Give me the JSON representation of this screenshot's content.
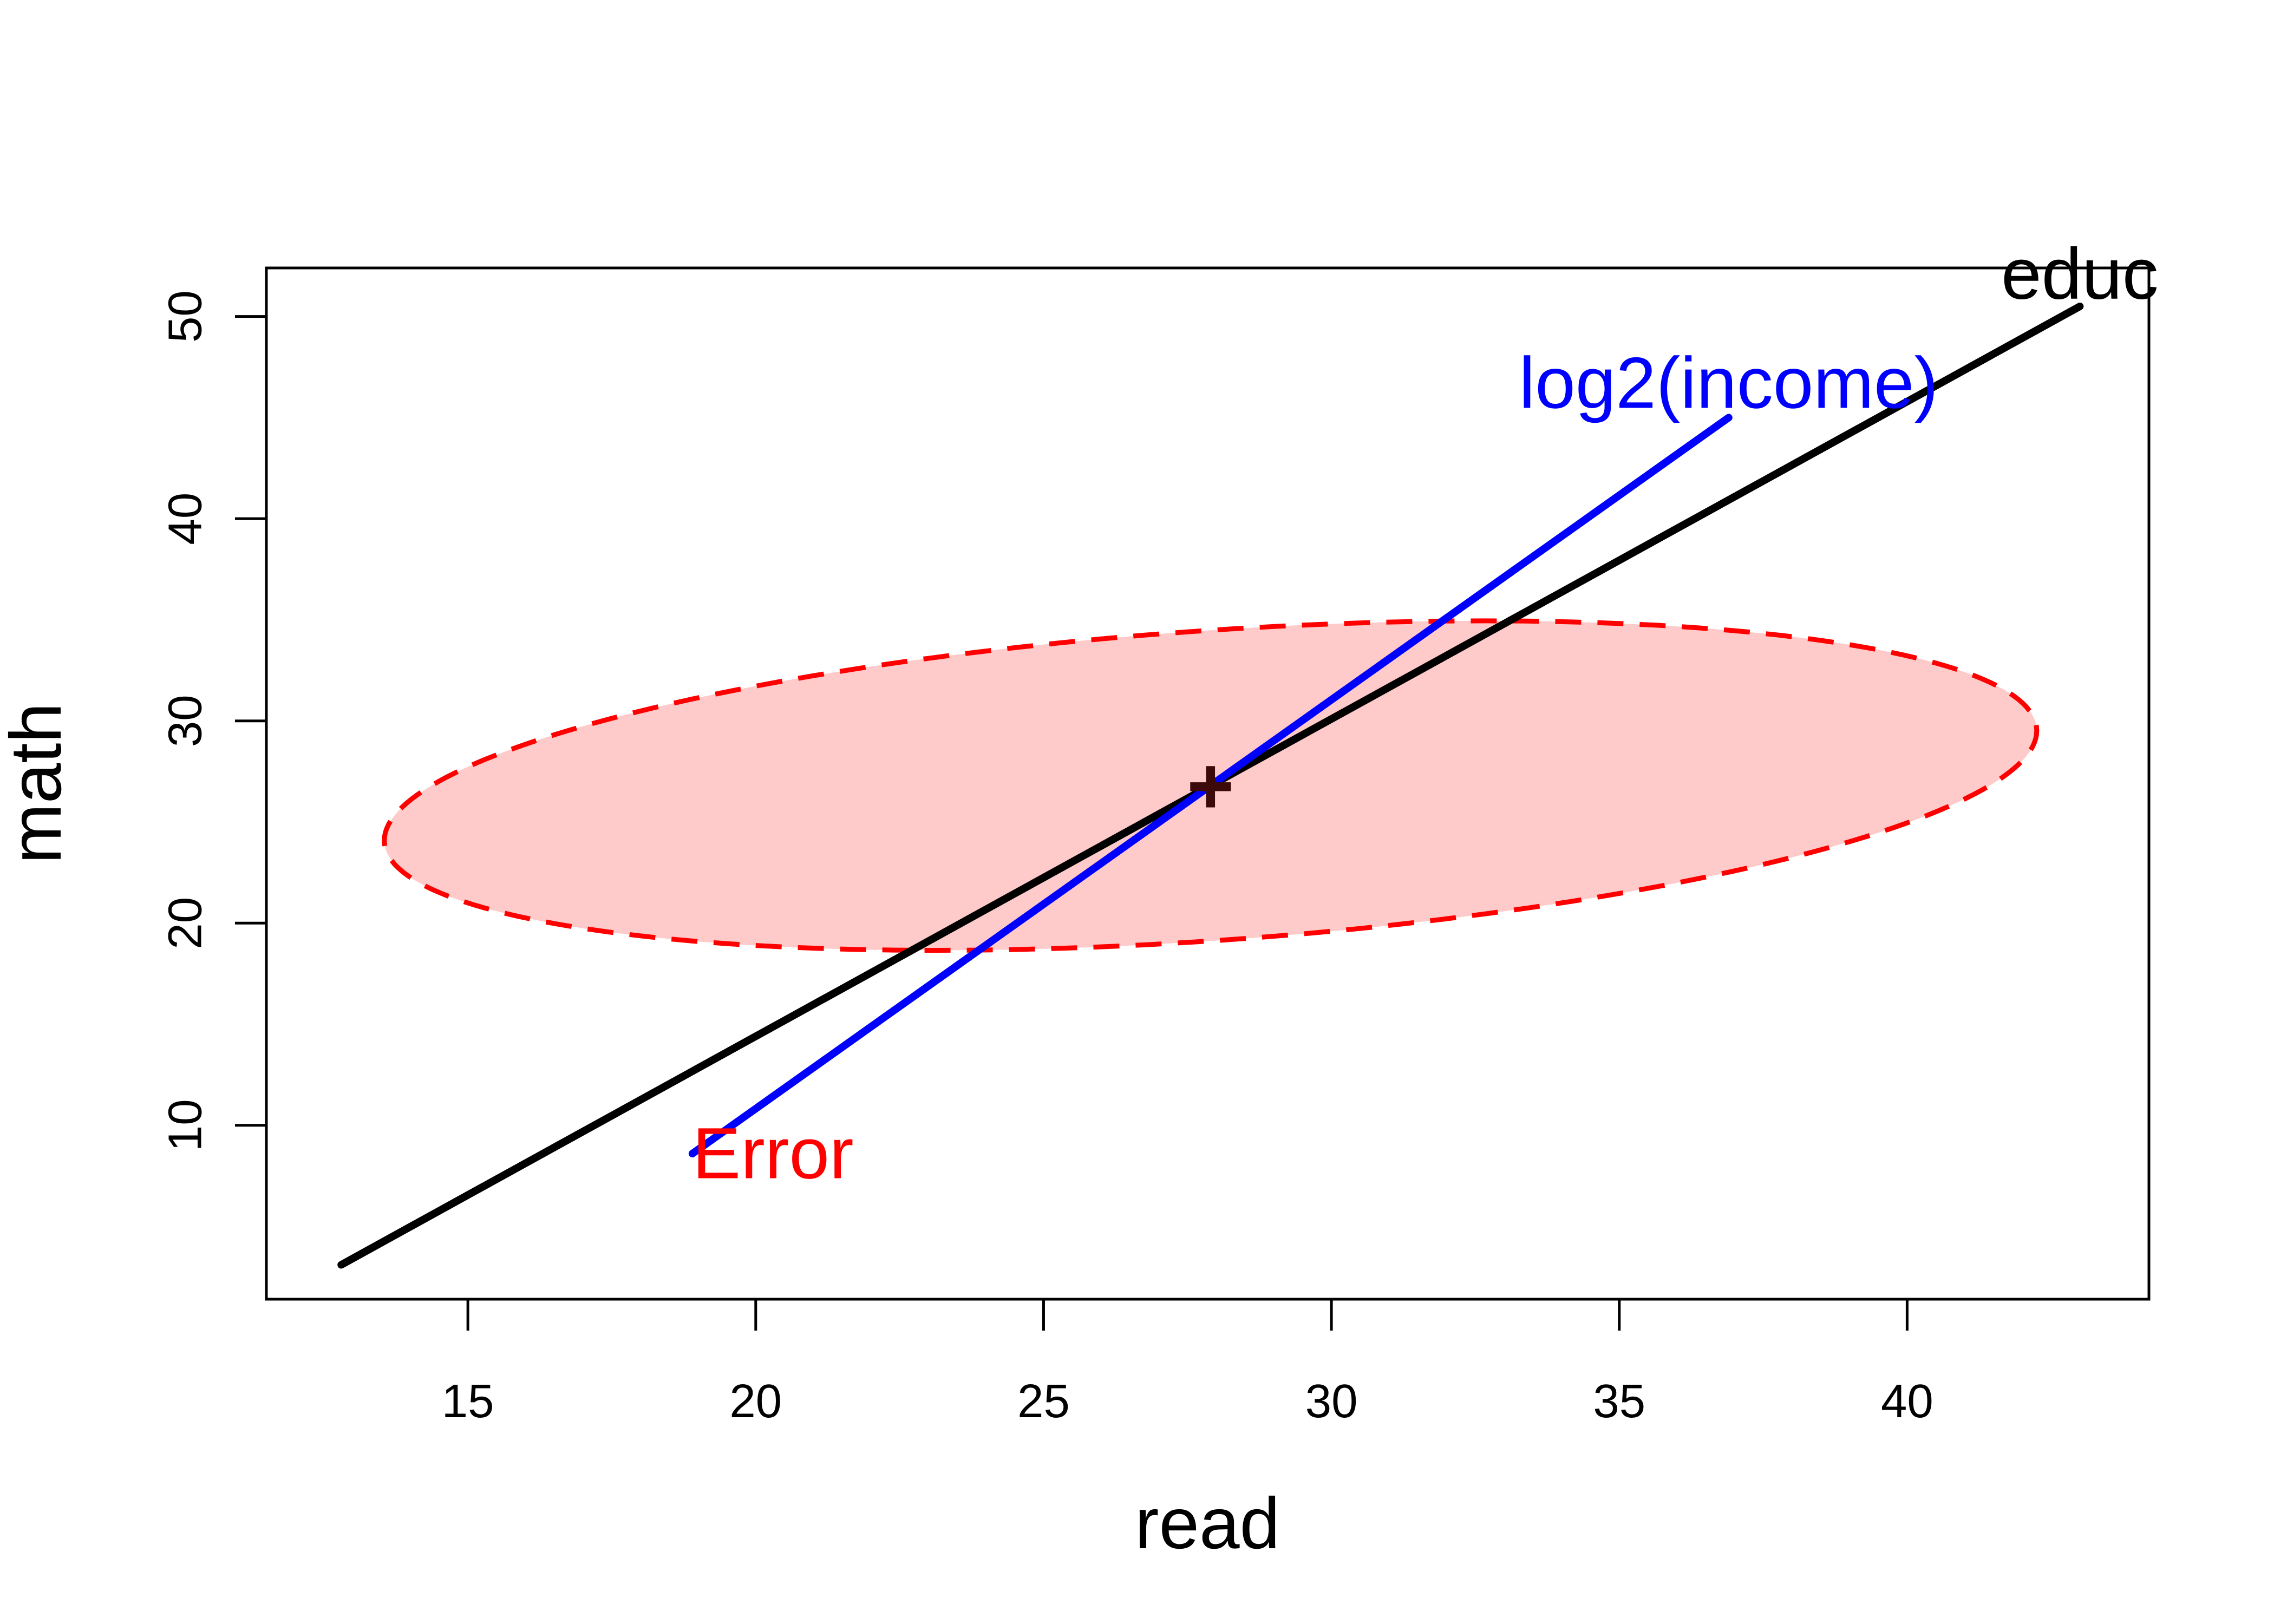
{
  "chart_data": {
    "type": "scatter",
    "title": "",
    "xlabel": "read",
    "ylabel": "math",
    "xlim": [
      11.5,
      44.2
    ],
    "ylim": [
      1.4,
      52.4
    ],
    "xticks": [
      15,
      20,
      25,
      30,
      35,
      40
    ],
    "yticks": [
      10,
      20,
      30,
      40,
      50
    ],
    "grid": false,
    "center": {
      "label": "+",
      "x": 27.9,
      "y": 26.8,
      "color": "#3d0a0a"
    },
    "series": [
      {
        "name": "educ",
        "kind": "line",
        "color": "#000000",
        "points": [
          {
            "x": 12.8,
            "y": 3.1
          },
          {
            "x": 43.0,
            "y": 50.5
          }
        ],
        "label_at": {
          "x": 43.0,
          "y": 52.1
        }
      },
      {
        "name": "log2(income)",
        "kind": "line",
        "color": "#0000ff",
        "points": [
          {
            "x": 18.9,
            "y": 8.6
          },
          {
            "x": 36.9,
            "y": 45.0
          }
        ],
        "label_at": {
          "x": 36.9,
          "y": 46.7
        }
      },
      {
        "name": "Error",
        "kind": "ellipse",
        "stroke": "#ff0000",
        "fill": "#ffb3b3",
        "fill_opacity": 0.7,
        "dash": true,
        "center": {
          "x": 27.9,
          "y": 26.8
        },
        "radius_x": 14.7,
        "radius_y": 7.5,
        "slope": 0.26,
        "label_at": {
          "x": 18.9,
          "y": 8.6
        }
      }
    ]
  }
}
